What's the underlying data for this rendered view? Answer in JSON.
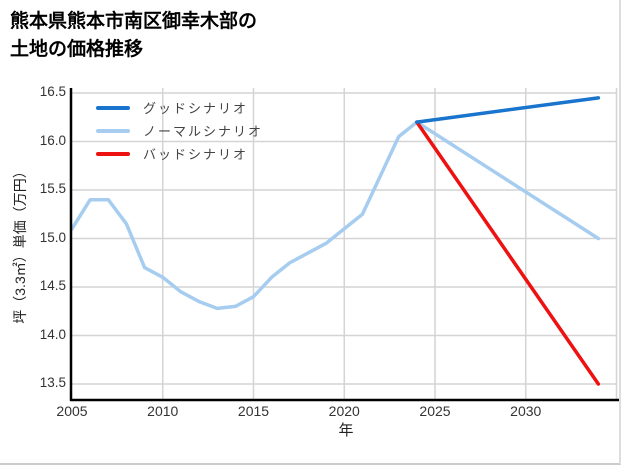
{
  "title": {
    "line1": "熊本県熊本市南区御幸木部の",
    "line2": "土地の価格推移"
  },
  "axes": {
    "x_label": "年",
    "y_label": "坪（3.3㎡）単価（万円）"
  },
  "legend": {
    "items": [
      {
        "label": "グッドシナリオ",
        "color": "#1874cd"
      },
      {
        "label": "ノーマルシナリオ",
        "color": "#a6cdf0"
      },
      {
        "label": "バッドシナリオ",
        "color": "#ee1111"
      }
    ]
  },
  "colors": {
    "good": "#1874cd",
    "normal": "#a6cdf0",
    "bad": "#ee1111",
    "grid": "#d4d4d4",
    "spine": "#000000",
    "tick_text": "#333333"
  },
  "chart_data": {
    "type": "line",
    "title": "熊本県熊本市南区御幸木部の土地の価格推移",
    "xlabel": "年",
    "ylabel": "坪（3.3㎡）単価（万円）",
    "xlim": [
      2005,
      2035.2
    ],
    "ylim": [
      13.34,
      16.56
    ],
    "xticks": [
      2005,
      2010,
      2015,
      2020,
      2025,
      2030
    ],
    "x_gridlines": [
      2010,
      2015,
      2020,
      2025,
      2030,
      2035
    ],
    "yticks": [
      13.5,
      14.0,
      14.5,
      15.0,
      15.5,
      16.0,
      16.5
    ],
    "grid": true,
    "legend_position": "upper-left-inside",
    "series": [
      {
        "name": "ノーマルシナリオ",
        "color": "#a6cdf0",
        "x": [
          2005,
          2006,
          2007,
          2008,
          2009,
          2010,
          2011,
          2012,
          2013,
          2014,
          2015,
          2016,
          2017,
          2018,
          2019,
          2020,
          2021,
          2022,
          2023,
          2024,
          2034
        ],
        "y": [
          15.1,
          15.4,
          15.4,
          15.15,
          14.7,
          14.6,
          14.45,
          14.35,
          14.28,
          14.3,
          14.4,
          14.6,
          14.75,
          14.85,
          14.95,
          15.1,
          15.25,
          15.65,
          16.05,
          16.2,
          15.0
        ]
      },
      {
        "name": "バッドシナリオ",
        "color": "#ee1111",
        "x": [
          2024,
          2034
        ],
        "y": [
          16.2,
          13.5
        ]
      },
      {
        "name": "グッドシナリオ",
        "color": "#1874cd",
        "x": [
          2024,
          2034
        ],
        "y": [
          16.2,
          16.45
        ]
      }
    ]
  }
}
